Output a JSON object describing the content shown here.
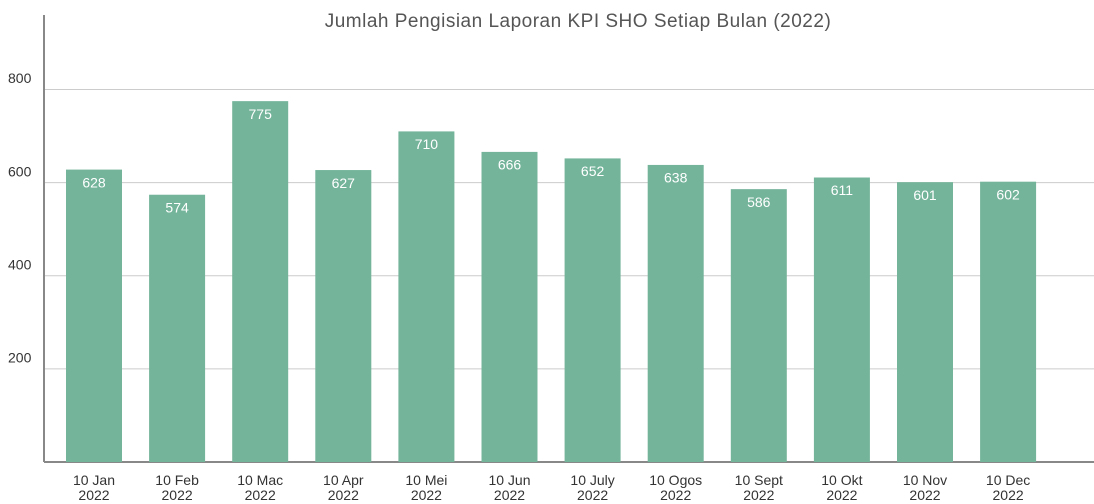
{
  "chart_data": {
    "type": "bar",
    "title": "Jumlah Pengisian Laporan KPI SHO Setiap Bulan (2022)",
    "categories": [
      "10 Jan\n2022",
      "10 Feb\n2022",
      "10 Mac\n2022",
      "10 Apr\n2022",
      "10 Mei\n2022",
      "10 Jun\n2022",
      "10 July\n2022",
      "10 Ogos\n2022",
      "10 Sept\n2022",
      "10 Okt\n2022",
      "10 Nov\n2022",
      "10 Dec\n2022"
    ],
    "values": [
      628,
      574,
      775,
      627,
      710,
      666,
      652,
      638,
      586,
      611,
      601,
      602
    ],
    "color": "#74b49b",
    "ylim": [
      0,
      960
    ],
    "yticks": [
      200,
      400,
      600,
      800
    ],
    "grid": true
  }
}
